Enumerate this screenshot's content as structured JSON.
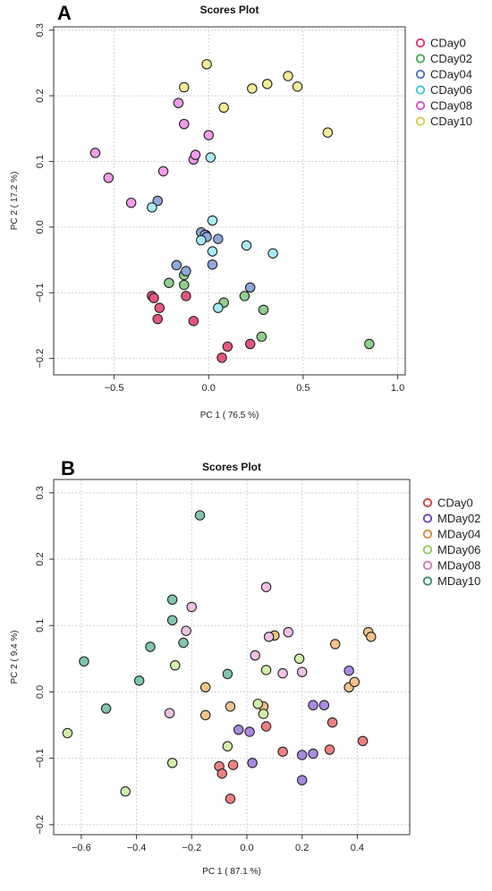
{
  "panels": [
    {
      "letter": "A",
      "chart_data": {
        "type": "scatter",
        "title": "Scores Plot",
        "xlabel": "PC 1 ( 76.5 %)",
        "ylabel": "PC 2 ( 17.2 %)",
        "xlim": [
          -0.82,
          1.04
        ],
        "ylim": [
          -0.225,
          0.305
        ],
        "xticks": [
          -0.5,
          0.0,
          0.5,
          1.0
        ],
        "xtick_labels": [
          "−0.5",
          "0.0",
          "0.5",
          "1.0"
        ],
        "yticks": [
          -0.2,
          -0.1,
          0.0,
          0.1,
          0.2,
          0.3
        ],
        "ytick_labels": [
          "−0.2",
          "−0.1",
          "0.0",
          "0.1",
          "0.2",
          "0.3"
        ],
        "grid": true,
        "legend_position": "right",
        "series": [
          {
            "name": "CDay0",
            "color": "#e8557d",
            "edge": "#e0306a",
            "points": [
              [
                -0.3,
                -0.105
              ],
              [
                -0.29,
                -0.108
              ],
              [
                -0.26,
                -0.123
              ],
              [
                -0.27,
                -0.14
              ],
              [
                -0.12,
                -0.105
              ],
              [
                -0.08,
                -0.143
              ],
              [
                0.1,
                -0.182
              ],
              [
                0.22,
                -0.178
              ],
              [
                0.07,
                -0.199
              ]
            ]
          },
          {
            "name": "CDay02",
            "color": "#8ed08e",
            "edge": "#3fae49",
            "points": [
              [
                -0.21,
                -0.085
              ],
              [
                -0.13,
                -0.073
              ],
              [
                -0.13,
                -0.088
              ],
              [
                -0.015,
                -0.012
              ],
              [
                0.08,
                -0.115
              ],
              [
                0.19,
                -0.105
              ],
              [
                0.29,
                -0.126
              ],
              [
                0.28,
                -0.167
              ],
              [
                0.85,
                -0.178
              ]
            ]
          },
          {
            "name": "CDay04",
            "color": "#8ea8dc",
            "edge": "#4a6fc4",
            "points": [
              [
                -0.27,
                0.04
              ],
              [
                -0.17,
                -0.058
              ],
              [
                -0.12,
                -0.067
              ],
              [
                -0.04,
                -0.008
              ],
              [
                -0.02,
                -0.012
              ],
              [
                -0.01,
                -0.015
              ],
              [
                0.02,
                -0.057
              ],
              [
                0.05,
                -0.018
              ],
              [
                0.22,
                -0.092
              ]
            ]
          },
          {
            "name": "CDay06",
            "color": "#a8ecf6",
            "edge": "#3cc7df",
            "points": [
              [
                -0.3,
                0.03
              ],
              [
                0.01,
                0.106
              ],
              [
                0.02,
                0.01
              ],
              [
                0.02,
                -0.037
              ],
              [
                -0.04,
                -0.02
              ],
              [
                0.05,
                -0.123
              ],
              [
                0.2,
                -0.028
              ],
              [
                0.34,
                -0.04
              ]
            ]
          },
          {
            "name": "CDay08",
            "color": "#f49bec",
            "edge": "#d94ed0",
            "points": [
              [
                -0.6,
                0.113
              ],
              [
                -0.53,
                0.075
              ],
              [
                -0.41,
                0.037
              ],
              [
                -0.24,
                0.085
              ],
              [
                -0.16,
                0.189
              ],
              [
                -0.13,
                0.157
              ],
              [
                -0.08,
                0.103
              ],
              [
                -0.07,
                0.11
              ],
              [
                0.0,
                0.14
              ]
            ]
          },
          {
            "name": "CDay10",
            "color": "#f4ec96",
            "edge": "#d8c94a",
            "points": [
              [
                -0.13,
                0.213
              ],
              [
                -0.01,
                0.248
              ],
              [
                0.08,
                0.182
              ],
              [
                0.23,
                0.211
              ],
              [
                0.31,
                0.218
              ],
              [
                0.42,
                0.23
              ],
              [
                0.47,
                0.214
              ],
              [
                0.63,
                0.144
              ]
            ]
          }
        ]
      }
    },
    {
      "letter": "B",
      "chart_data": {
        "type": "scatter",
        "title": "Scores Plot",
        "xlabel": "PC 1 ( 87.1 %)",
        "ylabel": "PC 2 ( 9.4 %)",
        "xlim": [
          -0.7,
          0.59
        ],
        "ylim": [
          -0.215,
          0.32
        ],
        "xticks": [
          -0.6,
          -0.4,
          -0.2,
          0.0,
          0.2,
          0.4
        ],
        "xtick_labels": [
          "−0.6",
          "−0.4",
          "−0.2",
          "0.0",
          "0.2",
          "0.4"
        ],
        "yticks": [
          -0.2,
          -0.1,
          0.0,
          0.1,
          0.2,
          0.3
        ],
        "ytick_labels": [
          "−0.2",
          "−0.1",
          "0.0",
          "0.1",
          "0.2",
          "0.3"
        ],
        "grid": true,
        "legend_position": "right",
        "series": [
          {
            "name": "CDay0",
            "color": "#f08080",
            "edge": "#d63a3a",
            "points": [
              [
                -0.1,
                -0.112
              ],
              [
                -0.09,
                -0.123
              ],
              [
                -0.05,
                -0.11
              ],
              [
                -0.06,
                -0.161
              ],
              [
                0.07,
                -0.052
              ],
              [
                0.13,
                -0.09
              ],
              [
                0.31,
                -0.046
              ],
              [
                0.3,
                -0.087
              ],
              [
                0.42,
                -0.074
              ]
            ]
          },
          {
            "name": "MDay02",
            "color": "#a98ae0",
            "edge": "#6a3cc0",
            "points": [
              [
                -0.03,
                -0.057
              ],
              [
                0.01,
                -0.06
              ],
              [
                0.02,
                -0.107
              ],
              [
                0.2,
                -0.095
              ],
              [
                0.2,
                -0.133
              ],
              [
                0.24,
                -0.02
              ],
              [
                0.24,
                -0.093
              ],
              [
                0.28,
                -0.02
              ],
              [
                0.37,
                0.032
              ]
            ]
          },
          {
            "name": "MDay04",
            "color": "#f0c48a",
            "edge": "#d2883a",
            "points": [
              [
                -0.15,
                0.007
              ],
              [
                -0.15,
                -0.035
              ],
              [
                -0.06,
                -0.022
              ],
              [
                0.06,
                -0.022
              ],
              [
                0.1,
                0.085
              ],
              [
                0.32,
                0.072
              ],
              [
                0.37,
                0.007
              ],
              [
                0.39,
                0.015
              ],
              [
                0.44,
                0.09
              ],
              [
                0.45,
                0.083
              ]
            ]
          },
          {
            "name": "MDay06",
            "color": "#d2f0a8",
            "edge": "#8fc85a",
            "points": [
              [
                -0.65,
                -0.062
              ],
              [
                -0.44,
                -0.15
              ],
              [
                -0.27,
                -0.107
              ],
              [
                -0.26,
                0.04
              ],
              [
                -0.07,
                -0.082
              ],
              [
                0.04,
                -0.018
              ],
              [
                0.06,
                -0.033
              ],
              [
                0.07,
                0.033
              ],
              [
                0.19,
                0.05
              ]
            ]
          },
          {
            "name": "MDay08",
            "color": "#f0c0e6",
            "edge": "#c878b6",
            "points": [
              [
                -0.28,
                -0.032
              ],
              [
                -0.22,
                0.092
              ],
              [
                -0.2,
                0.128
              ],
              [
                0.03,
                0.055
              ],
              [
                0.07,
                0.158
              ],
              [
                0.08,
                0.083
              ],
              [
                0.13,
                0.028
              ],
              [
                0.15,
                0.09
              ],
              [
                0.2,
                0.03
              ]
            ]
          },
          {
            "name": "MDay10",
            "color": "#7ec6ae",
            "edge": "#2e8a6c",
            "points": [
              [
                -0.59,
                0.046
              ],
              [
                -0.51,
                -0.025
              ],
              [
                -0.39,
                0.017
              ],
              [
                -0.35,
                0.068
              ],
              [
                -0.27,
                0.108
              ],
              [
                -0.27,
                0.139
              ],
              [
                -0.23,
                0.074
              ],
              [
                -0.17,
                0.266
              ],
              [
                -0.07,
                0.027
              ]
            ]
          }
        ]
      }
    }
  ]
}
